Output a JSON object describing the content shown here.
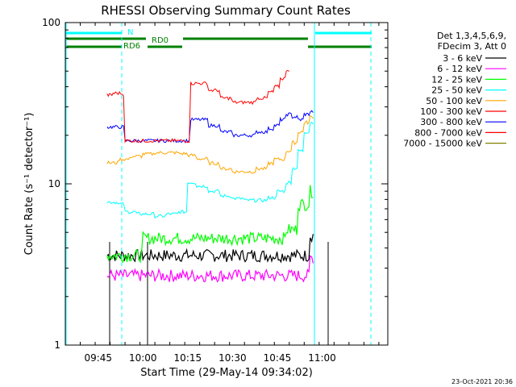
{
  "chart_data": {
    "type": "line",
    "title": "RHESSI Observing Summary Count Rates",
    "xlabel": "Start Time (29-May-14 09:34:02)",
    "ylabel": "Count Rate (s⁻¹ detector⁻¹)",
    "y_scale": "log",
    "ylim": [
      1,
      100
    ],
    "x_unit": "minutes after 09:34:02",
    "xlim": [
      0,
      108
    ],
    "x_ticks": [
      {
        "label": "09:45",
        "value": 11
      },
      {
        "label": "10:00",
        "value": 26
      },
      {
        "label": "10:15",
        "value": 41
      },
      {
        "label": "10:30",
        "value": 56
      },
      {
        "label": "10:45",
        "value": 71
      },
      {
        "label": "11:00",
        "value": 86
      }
    ],
    "y_ticks": [
      {
        "label": "1",
        "value": 1
      },
      {
        "label": "10",
        "value": 10
      },
      {
        "label": "100",
        "value": 100
      }
    ],
    "legend": {
      "header": [
        "Det 1,3,4,5,6,9,",
        "FDecim 3, Att 0"
      ],
      "placement": "right"
    },
    "series": [
      {
        "name": "3 - 6 keV",
        "color": "#000000",
        "x": [
          14,
          18,
          22,
          26,
          30,
          34,
          38,
          42,
          46,
          50,
          54,
          58,
          62,
          66,
          70,
          74,
          78,
          82
        ],
        "y": [
          3.6,
          3.6,
          3.6,
          3.6,
          3.6,
          3.6,
          3.6,
          3.6,
          3.6,
          3.6,
          3.6,
          3.6,
          3.6,
          3.6,
          3.6,
          3.6,
          3.6,
          4.8
        ]
      },
      {
        "name": "6 - 12 keV",
        "color": "#ff00ff",
        "x": [
          14,
          18,
          22,
          26,
          30,
          34,
          38,
          42,
          46,
          50,
          54,
          58,
          62,
          66,
          70,
          74,
          78,
          82
        ],
        "y": [
          2.7,
          2.7,
          2.7,
          2.7,
          2.7,
          2.7,
          2.7,
          2.7,
          2.7,
          2.7,
          2.7,
          2.7,
          2.7,
          2.7,
          2.7,
          2.7,
          2.7,
          3.5
        ]
      },
      {
        "name": "12 - 25 keV",
        "color": "#00ff00",
        "x": [
          14,
          18,
          22,
          26,
          30,
          34,
          38,
          42,
          46,
          50,
          54,
          58,
          62,
          66,
          70,
          74,
          78,
          82
        ],
        "y": [
          3.6,
          3.6,
          3.6,
          4.6,
          4.6,
          4.6,
          4.6,
          4.6,
          4.6,
          4.6,
          4.6,
          4.6,
          4.6,
          4.6,
          4.6,
          5.2,
          7.5,
          9
        ]
      },
      {
        "name": "25 - 50 keV",
        "color": "#00ffff",
        "x": [
          14,
          18,
          20,
          24,
          26,
          30,
          34,
          38,
          41,
          44,
          48,
          52,
          56,
          60,
          64,
          68,
          71,
          74,
          76,
          78,
          80,
          82
        ],
        "y": [
          7.7,
          7.5,
          6.7,
          6.5,
          6.5,
          6.3,
          6.5,
          6.7,
          10.2,
          9.7,
          9.0,
          8.4,
          8.1,
          7.9,
          7.9,
          8.2,
          9.0,
          10.2,
          12.5,
          16,
          21,
          24
        ]
      },
      {
        "name": "50 - 100 keV",
        "color": "#ffa500",
        "x": [
          14,
          18,
          22,
          26,
          30,
          34,
          38,
          41,
          44,
          48,
          52,
          56,
          60,
          64,
          68,
          70,
          74,
          76,
          78,
          80,
          82
        ],
        "y": [
          13.5,
          14.2,
          14.8,
          15.3,
          15.6,
          15.6,
          15.4,
          15.0,
          14.3,
          13.4,
          12.4,
          11.9,
          11.9,
          12.4,
          13.4,
          14.2,
          16.0,
          18,
          21,
          24,
          26
        ]
      },
      {
        "name": "100 - 300 keV",
        "color": "#ff0000",
        "x": [
          14,
          16,
          19,
          20,
          24,
          26,
          30,
          34,
          38,
          41,
          42,
          44,
          48,
          52,
          56,
          60,
          64,
          68,
          70,
          72,
          74
        ],
        "y": [
          35.5,
          36.5,
          36,
          18.5,
          18.5,
          18.5,
          18.5,
          18.5,
          18.5,
          18.5,
          42,
          42,
          38,
          34,
          32,
          32,
          34,
          37,
          40,
          45,
          51
        ]
      },
      {
        "name": "300 - 800 keV",
        "color": "#0000ff",
        "x": [
          14,
          16,
          19,
          20,
          24,
          26,
          30,
          34,
          38,
          41,
          42,
          46,
          48,
          52,
          56,
          60,
          64,
          68,
          70,
          72,
          74,
          76,
          78,
          80,
          82
        ],
        "y": [
          22.5,
          22.5,
          22.5,
          18.5,
          18.5,
          18.5,
          18.5,
          18.5,
          18.5,
          18.5,
          25,
          25,
          23,
          21,
          20,
          20,
          21,
          22,
          23,
          25,
          27,
          26,
          25,
          27,
          28
        ]
      },
      {
        "name": "800 - 7000 keV",
        "color": "#ff0000",
        "x": [],
        "y": []
      },
      {
        "name": "7000 - 15000 keV",
        "color": "#808000",
        "x": [],
        "y": []
      }
    ],
    "annotations": [
      {
        "text": "N",
        "color": "#00ffff",
        "x": 20
      },
      {
        "text": "RD0",
        "color": "#008000",
        "x": 29
      },
      {
        "text": "RD6",
        "color": "#008000",
        "x": 17
      }
    ]
  },
  "footer": {
    "timestamp": "23-Oct-2021 20:36"
  }
}
